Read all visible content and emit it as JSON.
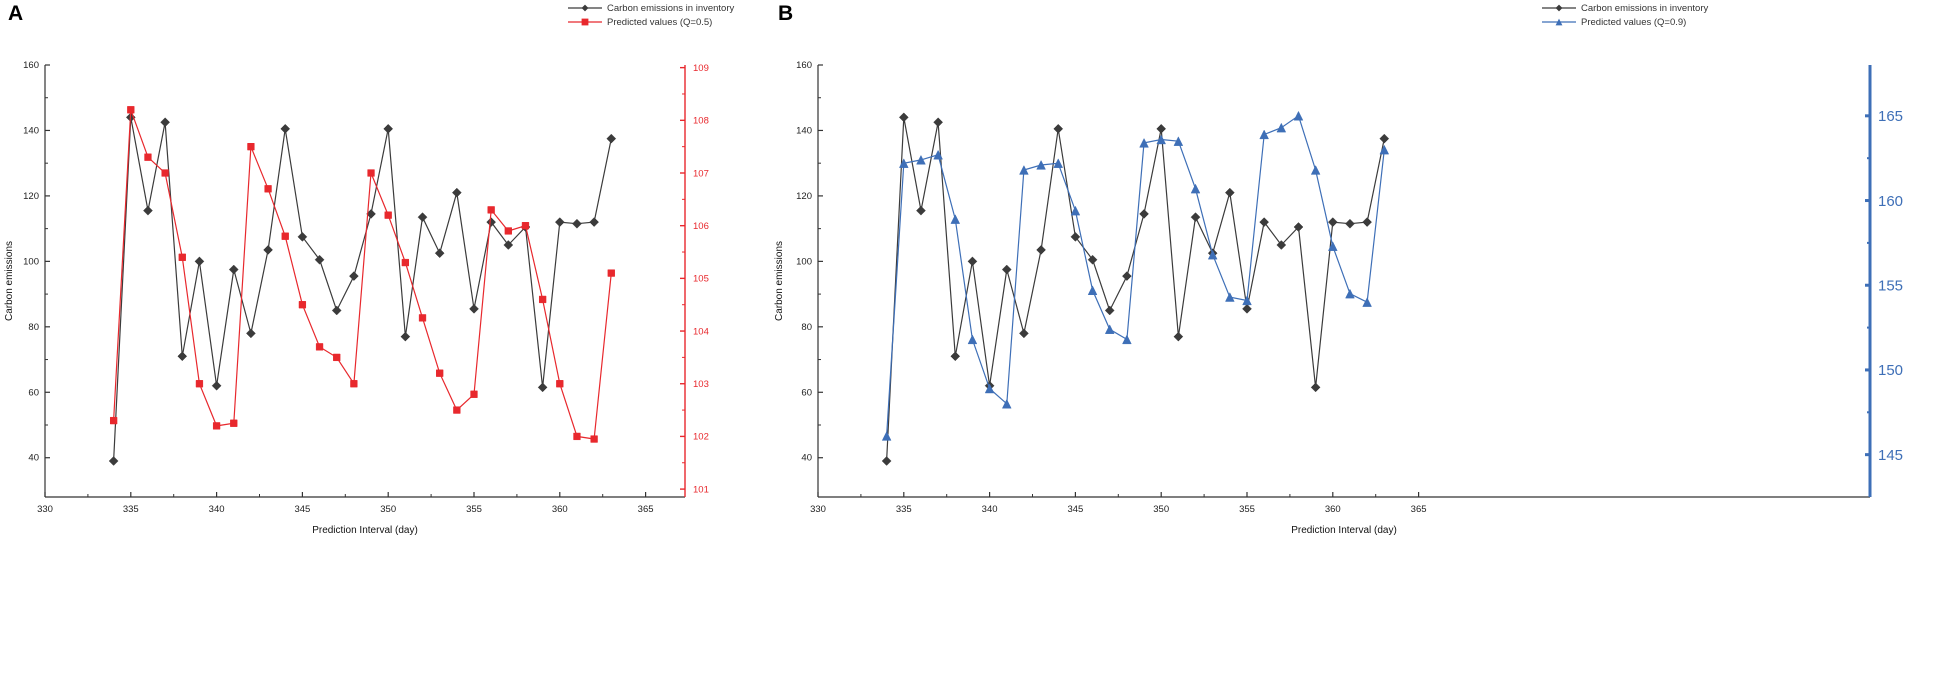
{
  "chart_data": [
    {
      "type": "line",
      "panel_label": "A",
      "xlabel": "Prediction Interval (day)",
      "ylabel_left": "Carbon emissions",
      "x_ticks": [
        330,
        335,
        340,
        345,
        350,
        355,
        360,
        365
      ],
      "left_ticks": [
        40,
        60,
        80,
        100,
        120,
        140,
        160
      ],
      "left_range": [
        28,
        160
      ],
      "right_ticks": [
        101,
        102,
        103,
        104,
        105,
        106,
        107,
        108,
        109
      ],
      "right_range": [
        100.85,
        109.05
      ],
      "right_color": "#e8282d",
      "x": [
        334,
        335,
        336,
        337,
        338,
        339,
        340,
        341,
        342,
        343,
        344,
        345,
        346,
        347,
        348,
        349,
        350,
        351,
        352,
        353,
        354,
        355,
        356,
        357,
        358,
        359,
        360,
        361,
        362,
        363
      ],
      "series": [
        {
          "name": "Carbon emissions in inventory",
          "axis": "left",
          "color": "#3b3b3b",
          "marker": "diamond",
          "values": [
            39,
            144,
            115.5,
            142.5,
            71,
            100,
            62,
            97.5,
            78,
            103.5,
            140.5,
            107.5,
            100.5,
            85,
            95.5,
            114.5,
            140.5,
            77,
            113.5,
            102.5,
            121,
            85.5,
            112,
            105,
            110.5,
            61.5,
            112,
            111.5,
            112,
            137.5
          ]
        },
        {
          "name": "Predicted values (Q=0.5)",
          "axis": "right",
          "color": "#e8282d",
          "marker": "square",
          "values": [
            102.3,
            108.2,
            107.3,
            107.0,
            105.4,
            103.0,
            102.2,
            102.25,
            107.5,
            106.7,
            105.8,
            104.5,
            103.7,
            103.5,
            103.0,
            107.0,
            106.2,
            105.3,
            104.25,
            103.2,
            102.5,
            102.8,
            106.3,
            105.9,
            106.0,
            104.6,
            103.0,
            102.0,
            101.95,
            105.1
          ]
        }
      ]
    },
    {
      "type": "line",
      "panel_label": "B",
      "xlabel": "Prediction Interval (day)",
      "ylabel_left": "Carbon emissions",
      "x_ticks": [
        330,
        335,
        340,
        345,
        350,
        355,
        360,
        365
      ],
      "left_ticks": [
        40,
        60,
        80,
        100,
        120,
        140,
        160
      ],
      "left_range": [
        28,
        160
      ],
      "right_ticks": [
        145,
        150,
        155,
        160,
        165
      ],
      "right_range": [
        142.5,
        168.0
      ],
      "right_color": "#3e6fb7",
      "x": [
        334,
        335,
        336,
        337,
        338,
        339,
        340,
        341,
        342,
        343,
        344,
        345,
        346,
        347,
        348,
        349,
        350,
        351,
        352,
        353,
        354,
        355,
        356,
        357,
        358,
        359,
        360,
        361,
        362,
        363
      ],
      "series": [
        {
          "name": "Carbon emissions in inventory",
          "axis": "left",
          "color": "#3b3b3b",
          "marker": "diamond",
          "values": [
            39,
            144,
            115.5,
            142.5,
            71,
            100,
            62,
            97.5,
            78,
            103.5,
            140.5,
            107.5,
            100.5,
            85,
            95.5,
            114.5,
            140.5,
            77,
            113.5,
            102.5,
            121,
            85.5,
            112,
            105,
            110.5,
            61.5,
            112,
            111.5,
            112,
            137.5
          ]
        },
        {
          "name": "Predicted values (Q=0.9)",
          "axis": "right",
          "color": "#3e6fb7",
          "marker": "triangle",
          "values": [
            146.1,
            162.2,
            162.4,
            162.7,
            158.9,
            151.8,
            148.9,
            148.0,
            161.8,
            162.1,
            162.2,
            159.4,
            154.7,
            152.4,
            151.8,
            163.4,
            163.6,
            163.5,
            160.7,
            156.8,
            154.3,
            154.1,
            163.9,
            164.3,
            165.0,
            161.8,
            157.3,
            154.5,
            154.0,
            163.0
          ]
        }
      ]
    }
  ]
}
